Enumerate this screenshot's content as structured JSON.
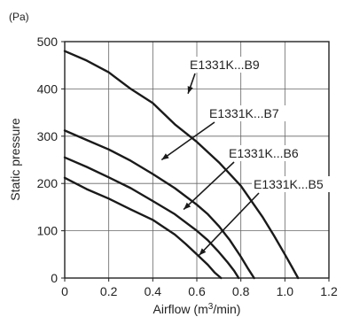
{
  "chart_data": {
    "type": "line",
    "xlabel_prefix": "Airflow (m",
    "xlabel_sup": "3",
    "xlabel_suffix": "/min)",
    "ylabel": "Static pressure",
    "y_unit": "(Pa)",
    "xlim": [
      0,
      1.2
    ],
    "ylim": [
      0,
      500
    ],
    "x_ticks": [
      0,
      0.2,
      0.4,
      0.6,
      0.8,
      1.0,
      1.2
    ],
    "x_tick_labels": [
      "0",
      "0.2",
      "0.4",
      "0.6",
      "0.8",
      "1.0",
      "1.2"
    ],
    "y_ticks": [
      0,
      100,
      200,
      300,
      400,
      500
    ],
    "y_tick_labels": [
      "0",
      "100",
      "200",
      "300",
      "400",
      "500"
    ],
    "grid": true,
    "series": [
      {
        "name": "E1331K...B9",
        "x": [
          0,
          0.1,
          0.2,
          0.3,
          0.4,
          0.5,
          0.6,
          0.7,
          0.8,
          0.9,
          0.95,
          1.0,
          1.03,
          1.06
        ],
        "y": [
          480,
          460,
          435,
          400,
          370,
          325,
          288,
          245,
          195,
          128,
          90,
          50,
          25,
          0
        ],
        "label_at": [
          0.56,
          390
        ]
      },
      {
        "name": "E1331K...B7",
        "x": [
          0,
          0.1,
          0.2,
          0.3,
          0.4,
          0.5,
          0.6,
          0.65,
          0.7,
          0.75,
          0.8,
          0.83,
          0.86
        ],
        "y": [
          312,
          292,
          272,
          248,
          220,
          190,
          155,
          135,
          110,
          80,
          45,
          22,
          0
        ],
        "label_at": [
          0.44,
          250
        ]
      },
      {
        "name": "E1331K...B6",
        "x": [
          0,
          0.1,
          0.2,
          0.3,
          0.4,
          0.5,
          0.6,
          0.65,
          0.7,
          0.74,
          0.77,
          0.79
        ],
        "y": [
          255,
          235,
          213,
          190,
          163,
          135,
          100,
          80,
          55,
          33,
          15,
          0
        ],
        "label_at": [
          0.54,
          145
        ]
      },
      {
        "name": "E1331K...B5",
        "x": [
          0,
          0.1,
          0.2,
          0.3,
          0.4,
          0.5,
          0.55,
          0.6,
          0.65,
          0.68,
          0.71
        ],
        "y": [
          212,
          188,
          168,
          145,
          123,
          92,
          72,
          50,
          28,
          12,
          0
        ],
        "label_at": [
          0.61,
          48
        ]
      }
    ]
  }
}
